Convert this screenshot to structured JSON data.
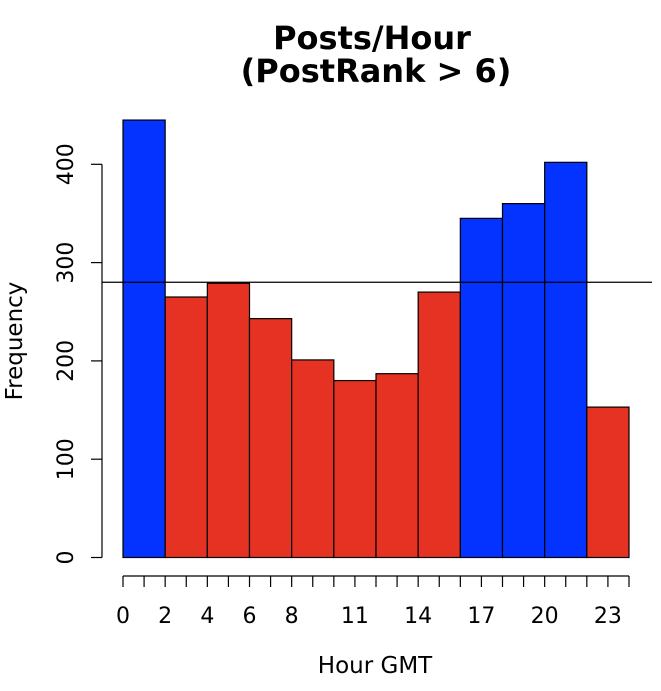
{
  "chart_data": {
    "type": "bar",
    "title": [
      "Posts/Hour",
      "(PostRank > 6)"
    ],
    "xlabel": "Hour GMT",
    "ylabel": "Frequency",
    "bins": [
      {
        "x0": 0,
        "x1": 2,
        "value": 445,
        "color": "#0433ff"
      },
      {
        "x0": 2,
        "x1": 4,
        "value": 265,
        "color": "#e53223"
      },
      {
        "x0": 4,
        "x1": 6,
        "value": 279,
        "color": "#e53223"
      },
      {
        "x0": 6,
        "x1": 8,
        "value": 243,
        "color": "#e53223"
      },
      {
        "x0": 8,
        "x1": 10,
        "value": 201,
        "color": "#e53223"
      },
      {
        "x0": 10,
        "x1": 12,
        "value": 180,
        "color": "#e53223"
      },
      {
        "x0": 12,
        "x1": 14,
        "value": 187,
        "color": "#e53223"
      },
      {
        "x0": 14,
        "x1": 16,
        "value": 270,
        "color": "#e53223"
      },
      {
        "x0": 16,
        "x1": 18,
        "value": 345,
        "color": "#0433ff"
      },
      {
        "x0": 18,
        "x1": 20,
        "value": 360,
        "color": "#0433ff"
      },
      {
        "x0": 20,
        "x1": 22,
        "value": 402,
        "color": "#0433ff"
      },
      {
        "x0": 22,
        "x1": 24,
        "value": 153,
        "color": "#e53223"
      }
    ],
    "reference_line": {
      "y": 280,
      "color": "#000000"
    },
    "xlim": [
      0,
      24
    ],
    "ylim": [
      0,
      445
    ],
    "x_minor_ticks": [
      0,
      1,
      2,
      3,
      4,
      5,
      6,
      7,
      8,
      9,
      10,
      11,
      12,
      13,
      14,
      15,
      16,
      17,
      18,
      19,
      20,
      21,
      22,
      23,
      24
    ],
    "x_tick_labels": [
      {
        "value": 0,
        "label": "0"
      },
      {
        "value": 2,
        "label": "2"
      },
      {
        "value": 4,
        "label": "4"
      },
      {
        "value": 6,
        "label": "6"
      },
      {
        "value": 8,
        "label": "8"
      },
      {
        "value": 11,
        "label": "11"
      },
      {
        "value": 14,
        "label": "14"
      },
      {
        "value": 17,
        "label": "17"
      },
      {
        "value": 20,
        "label": "20"
      },
      {
        "value": 23,
        "label": "23"
      }
    ],
    "y_ticks": [
      {
        "value": 0,
        "label": "0"
      },
      {
        "value": 100,
        "label": "100"
      },
      {
        "value": 200,
        "label": "200"
      },
      {
        "value": 300,
        "label": "300"
      },
      {
        "value": 400,
        "label": "400"
      }
    ],
    "grid": false,
    "legend": "none"
  }
}
